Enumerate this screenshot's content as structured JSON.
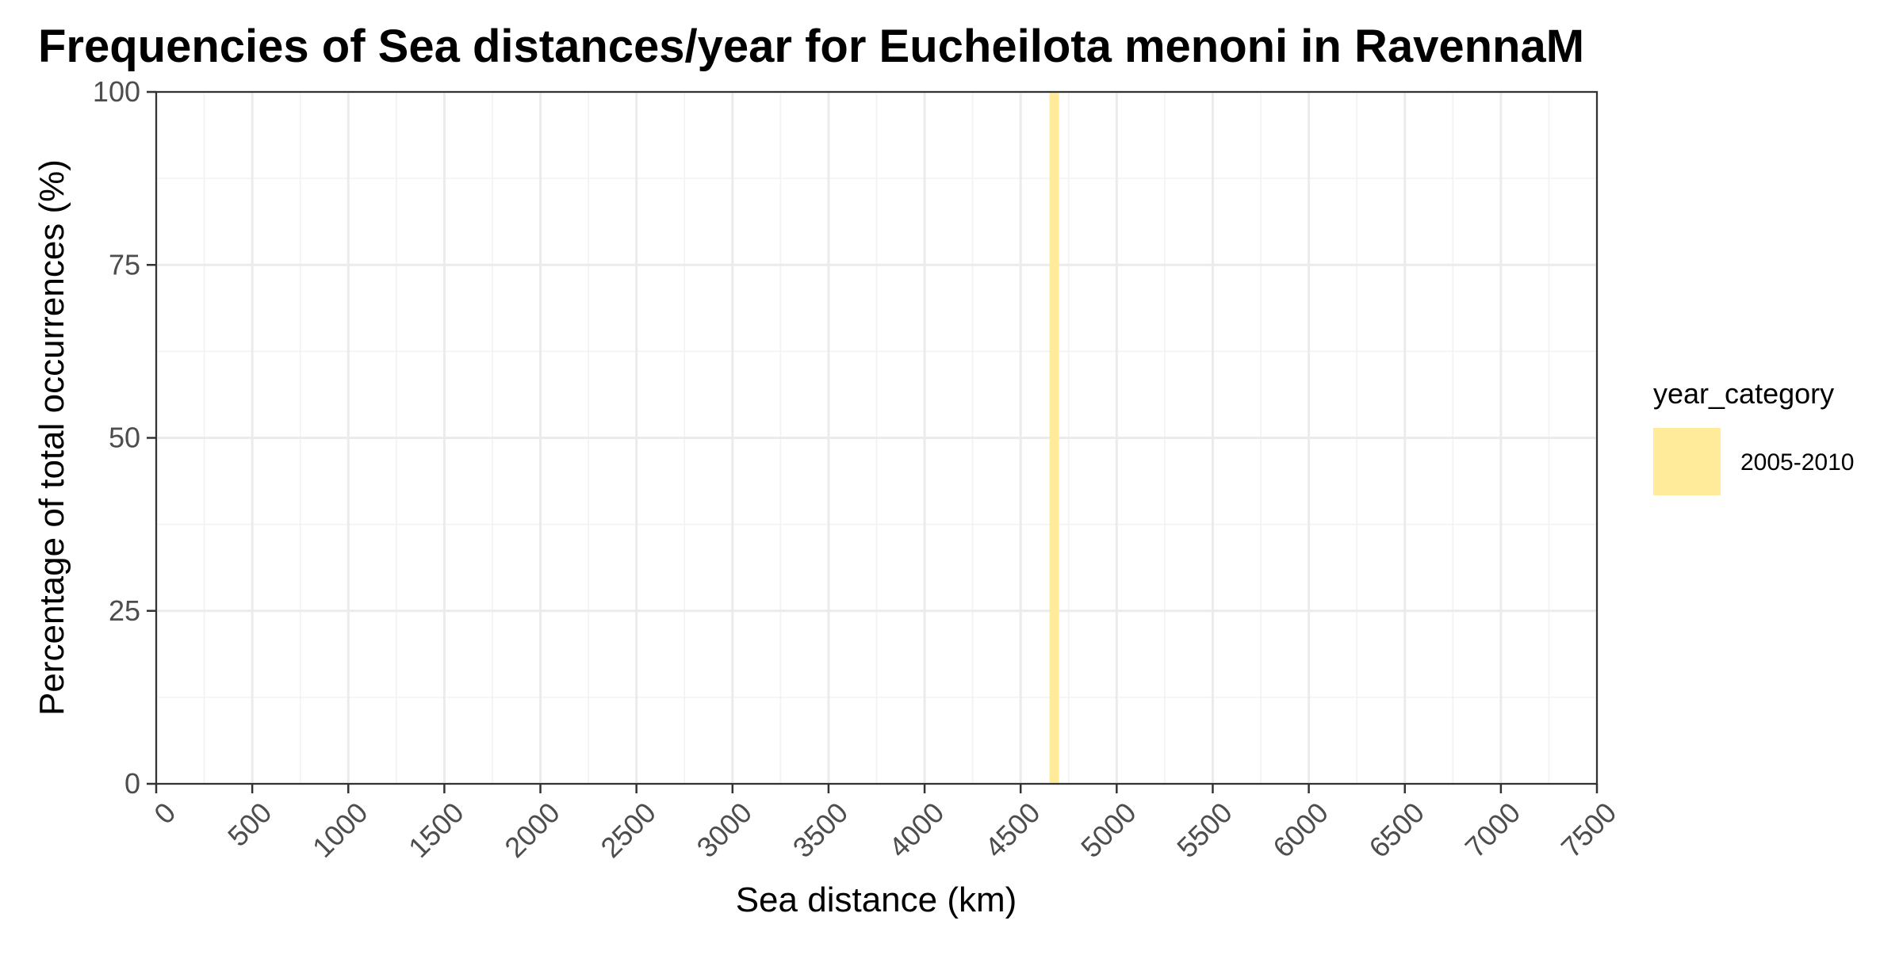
{
  "chart_data": {
    "type": "bar",
    "title": "Frequencies of Sea distances/year for Eucheilota menoni in RavennaM",
    "xlabel": "Sea distance (km)",
    "ylabel": "Percentage of total occurrences (%)",
    "xlim": [
      0,
      7500
    ],
    "ylim": [
      0,
      100
    ],
    "x_ticks": [
      0,
      500,
      1000,
      1500,
      2000,
      2500,
      3000,
      3500,
      4000,
      4500,
      5000,
      5500,
      6000,
      6500,
      7000,
      7500
    ],
    "y_ticks": [
      0,
      25,
      50,
      75,
      100
    ],
    "grid": true,
    "legend": {
      "title": "year_category",
      "placement": "right",
      "entries": [
        {
          "label": "2005-2010",
          "color": "#FFEB99"
        }
      ]
    },
    "series": [
      {
        "name": "2005-2010",
        "color": "#FFEB99",
        "bars": [
          {
            "x_start": 4650,
            "x_end": 4700,
            "value": 100
          }
        ]
      }
    ]
  }
}
